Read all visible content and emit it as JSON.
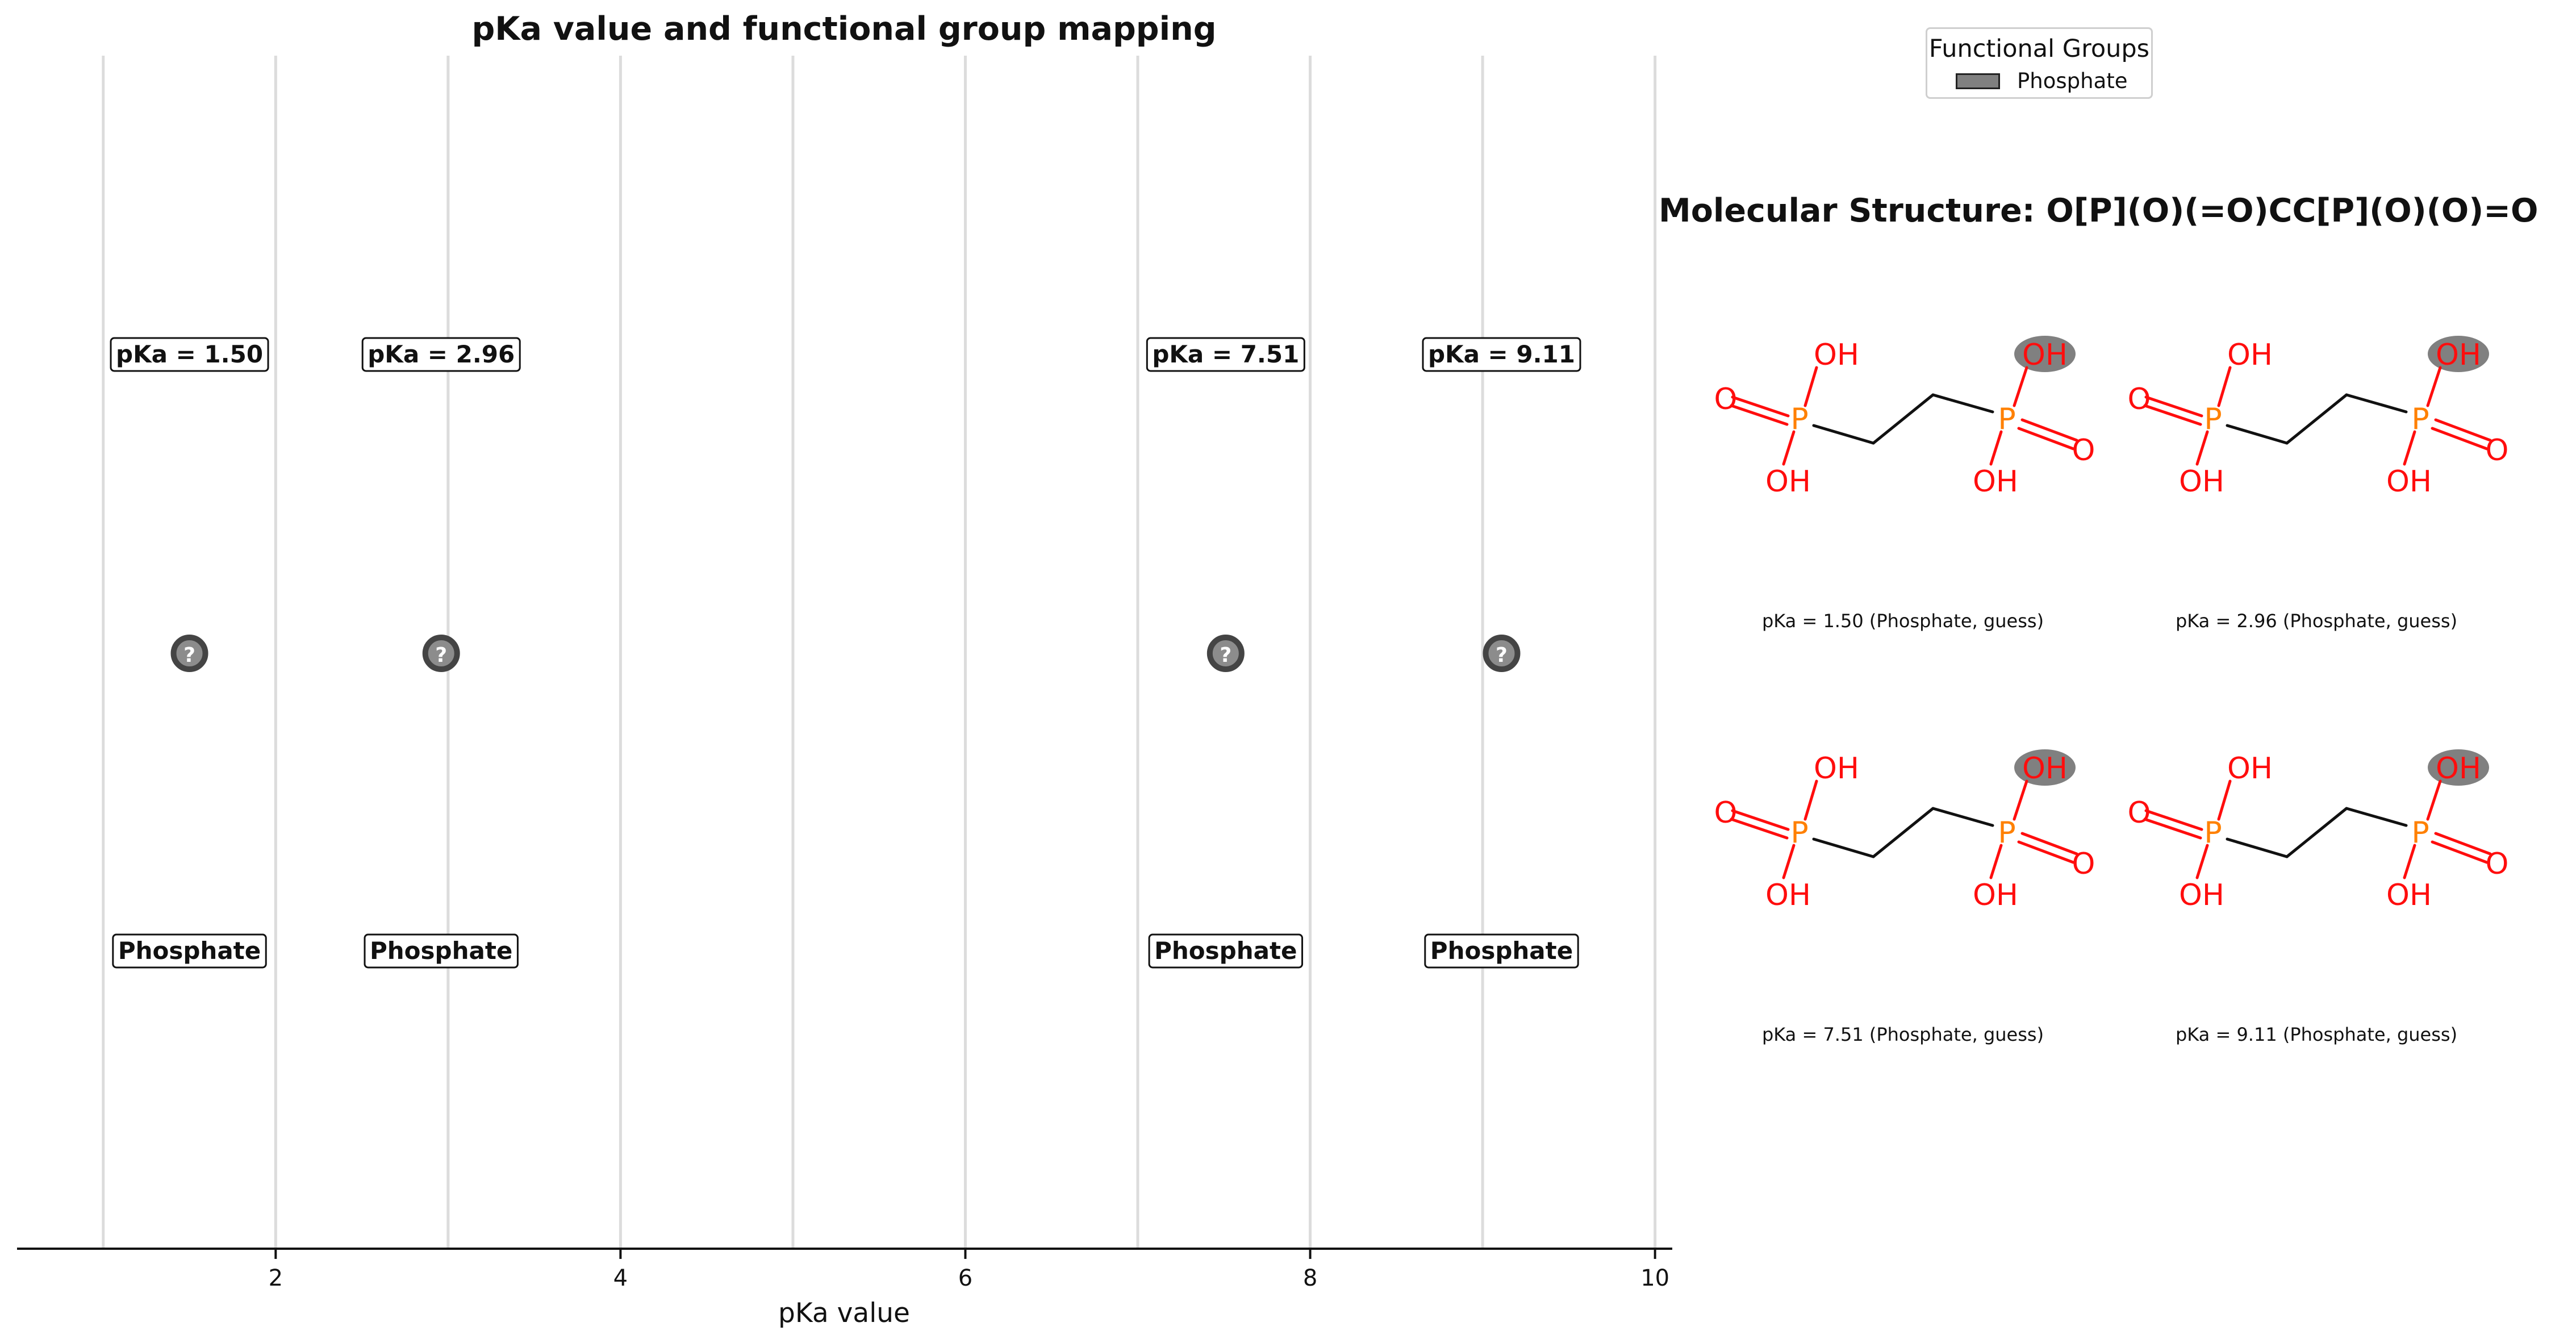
{
  "chart_data": {
    "type": "scatter",
    "title": "pKa value and functional group mapping",
    "xlabel": "pKa value",
    "ylabel": "",
    "xlim": [
      0.5,
      10.1
    ],
    "xticks": [
      2,
      4,
      6,
      8,
      10
    ],
    "grid": true,
    "legend_placement": "top-right",
    "marker_label": "?",
    "points": [
      {
        "pka": 1.5,
        "pka_label": "pKa = 1.50",
        "group_label": "Phosphate"
      },
      {
        "pka": 2.96,
        "pka_label": "pKa = 2.96",
        "group_label": "Phosphate"
      },
      {
        "pka": 7.51,
        "pka_label": "pKa = 7.51",
        "group_label": "Phosphate"
      },
      {
        "pka": 9.11,
        "pka_label": "pKa = 9.11",
        "group_label": "Phosphate"
      }
    ]
  },
  "legend": {
    "title": "Functional Groups",
    "items": [
      {
        "label": "Phosphate",
        "color": "#808080"
      }
    ]
  },
  "molecule": {
    "title": "Molecular Structure: O[P](O)(=O)CC[P](O)(O)=O",
    "atom_labels": {
      "oh": "OH",
      "o": "O",
      "p": "P"
    },
    "panels": [
      {
        "caption": "pKa = 1.50 (Phosphate, guess)"
      },
      {
        "caption": "pKa = 2.96 (Phosphate, guess)"
      },
      {
        "caption": "pKa = 7.51 (Phosphate, guess)"
      },
      {
        "caption": "pKa = 9.11 (Phosphate, guess)"
      }
    ]
  },
  "colors": {
    "grid": "#dcdcdc",
    "marker_fill": "#8c8c8c",
    "marker_edge": "#444444",
    "oxygen": "#ff0d0d",
    "phosphorus": "#ff8000",
    "bond": "#111111",
    "highlight": "#808080"
  }
}
